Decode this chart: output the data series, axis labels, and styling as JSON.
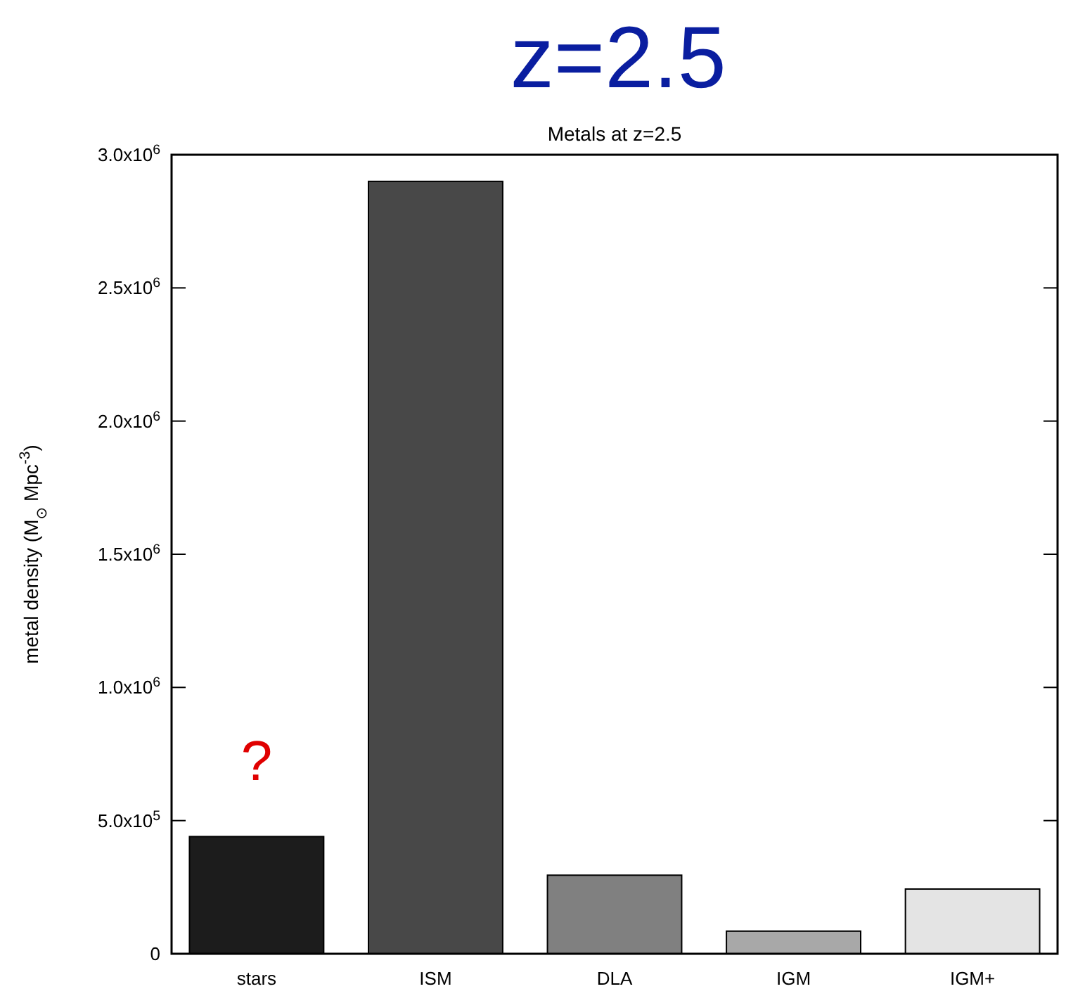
{
  "chart_data": {
    "type": "bar",
    "title": "z=2.5",
    "subtitle": "Metals at z=2.5",
    "ylabel": "metal density (M$_{⊙}$ Mpc$^{-3}$)",
    "categories": [
      "stars",
      "ISM",
      "DLA",
      "IGM",
      "IGM+"
    ],
    "values": [
      440000,
      2900000,
      295000,
      85000,
      243000
    ],
    "colors": [
      "#1c1c1c",
      "#484848",
      "#808080",
      "#a8a8a8",
      "#e4e4e4"
    ],
    "ylim": [
      0,
      3000000
    ],
    "yticks": [
      0,
      {
        "value": 500000,
        "label": "5.0x10$^{5}$"
      },
      {
        "value": 1000000,
        "label": "1.0x10$^{6}$"
      },
      {
        "value": 1500000,
        "label": "1.5x10$^{6}$"
      },
      {
        "value": 2000000,
        "label": "2.0x10$^{6}$"
      },
      {
        "value": 2500000,
        "label": "2.5x10$^{6}$"
      },
      {
        "value": 3000000,
        "label": "3.0x10$^{6}$"
      }
    ],
    "annotations": [
      "?"
    ],
    "grid": false
  }
}
